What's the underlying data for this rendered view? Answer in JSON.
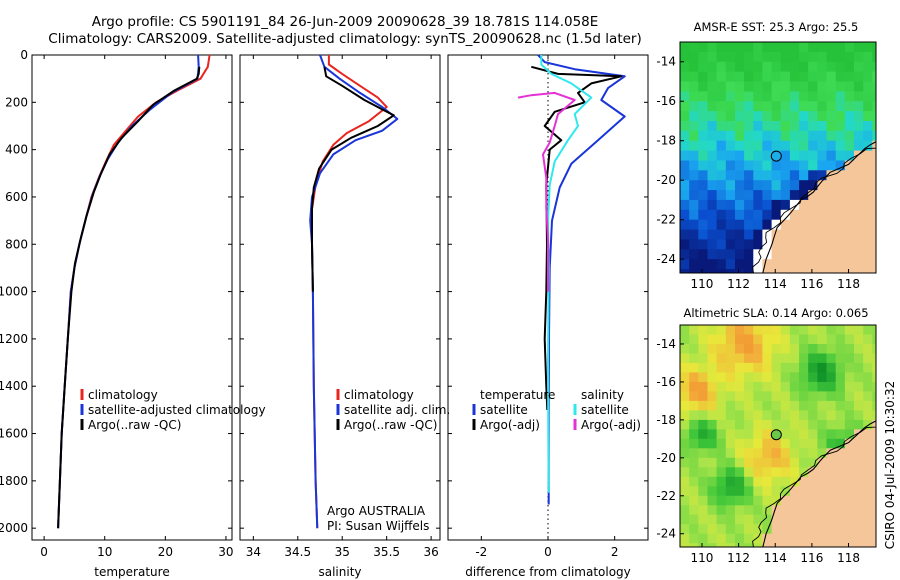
{
  "title_line1": "Argo profile: CS 5901191_84 26-Jun-2009 20090628_39 18.781S 114.058E",
  "title_line2": "Climatology: CARS2009. Satellite-adjusted climatology: synTS_20090628.nc (1.5d later)",
  "side_caption": "CSIRO 04-Jul-2009 10:30:32",
  "colors": {
    "climatology": "#e8261f",
    "satellite": "#1a35d8",
    "argo": "#000000",
    "sat_salinity": "#2ee8ee",
    "argo_salinity_adj": "#e531d6"
  },
  "chart_data": [
    {
      "id": "temperature",
      "type": "line",
      "xlabel": "temperature",
      "xlim": [
        -2,
        31
      ],
      "ylim": [
        2050,
        0
      ],
      "xticks": [
        "0",
        "10",
        "20",
        "30"
      ],
      "yticks": [
        "0",
        "200",
        "400",
        "600",
        "800",
        "1000",
        "1200",
        "1400",
        "1600",
        "1800",
        "2000"
      ],
      "legend": [
        "climatology",
        "satellite-adjusted climatology",
        "Argo(..raw -QC)"
      ],
      "series": [
        {
          "name": "climatology",
          "color": "#e8261f",
          "points": [
            [
              27.3,
              0
            ],
            [
              27.0,
              50
            ],
            [
              25.8,
              100
            ],
            [
              22,
              150
            ],
            [
              18.5,
              200
            ],
            [
              15.5,
              260
            ],
            [
              13.5,
              320
            ],
            [
              11.5,
              380
            ],
            [
              10.2,
              450
            ],
            [
              9.0,
              520
            ],
            [
              7.8,
              600
            ],
            [
              6.8,
              700
            ],
            [
              5.8,
              800
            ],
            [
              5.0,
              900
            ],
            [
              4.4,
              1000
            ],
            [
              3.9,
              1200
            ],
            [
              3.4,
              1400
            ],
            [
              2.9,
              1600
            ],
            [
              2.6,
              1800
            ],
            [
              2.3,
              2000
            ]
          ]
        },
        {
          "name": "satellite-adjusted climatology",
          "color": "#1a35d8",
          "points": [
            [
              25.4,
              0
            ],
            [
              25.5,
              50
            ],
            [
              25.3,
              100
            ],
            [
              21.0,
              160
            ],
            [
              17.5,
              230
            ],
            [
              14.5,
              300
            ],
            [
              12.2,
              370
            ],
            [
              10.5,
              440
            ],
            [
              9.2,
              510
            ],
            [
              8.0,
              590
            ],
            [
              6.9,
              690
            ],
            [
              5.9,
              790
            ],
            [
              5.0,
              900
            ],
            [
              4.4,
              1000
            ],
            [
              3.9,
              1200
            ],
            [
              3.4,
              1400
            ],
            [
              2.9,
              1600
            ],
            [
              2.6,
              1800
            ],
            [
              2.3,
              2000
            ]
          ]
        },
        {
          "name": "Argo(..raw -QC)",
          "color": "#000000",
          "points": [
            [
              25.6,
              50
            ],
            [
              25.5,
              80
            ],
            [
              25.2,
              100
            ],
            [
              21.5,
              150
            ],
            [
              18.0,
              210
            ],
            [
              15.5,
              280
            ],
            [
              12.8,
              350
            ],
            [
              10.8,
              420
            ],
            [
              9.4,
              500
            ],
            [
              8.2,
              580
            ],
            [
              7.0,
              680
            ],
            [
              6.0,
              780
            ],
            [
              5.1,
              880
            ],
            [
              4.5,
              1000
            ],
            [
              3.9,
              1200
            ],
            [
              3.4,
              1400
            ],
            [
              2.9,
              1600
            ],
            [
              2.6,
              1800
            ],
            [
              2.3,
              2000
            ]
          ]
        }
      ]
    },
    {
      "id": "salinity",
      "type": "line",
      "xlabel": "salinity",
      "xlim": [
        33.85,
        36.1
      ],
      "ylim": [
        2050,
        0
      ],
      "xticks": [
        "34",
        "34.5",
        "35",
        "35.5",
        "36"
      ],
      "legend": [
        "climatology",
        "satellite adj. clim.",
        "Argo(..raw -QC)"
      ],
      "annotations": [
        "Argo AUSTRALIA",
        "PI: Susan Wijffels"
      ],
      "series": [
        {
          "name": "climatology",
          "color": "#e8261f",
          "points": [
            [
              34.85,
              0
            ],
            [
              34.85,
              40
            ],
            [
              35.0,
              80
            ],
            [
              35.2,
              130
            ],
            [
              35.4,
              180
            ],
            [
              35.5,
              220
            ],
            [
              35.3,
              280
            ],
            [
              35.05,
              330
            ],
            [
              34.9,
              380
            ],
            [
              34.78,
              450
            ],
            [
              34.7,
              550
            ],
            [
              34.66,
              650
            ],
            [
              34.66,
              800
            ],
            [
              34.67,
              1000
            ],
            [
              34.68,
              1400
            ],
            [
              34.7,
              1800
            ],
            [
              34.72,
              2000
            ]
          ]
        },
        {
          "name": "satellite adj. clim.",
          "color": "#1a35d8",
          "points": [
            [
              34.75,
              0
            ],
            [
              34.8,
              50
            ],
            [
              34.97,
              100
            ],
            [
              35.2,
              160
            ],
            [
              35.45,
              220
            ],
            [
              35.62,
              270
            ],
            [
              35.45,
              320
            ],
            [
              35.15,
              360
            ],
            [
              34.9,
              420
            ],
            [
              34.75,
              500
            ],
            [
              34.66,
              600
            ],
            [
              34.64,
              700
            ],
            [
              34.66,
              800
            ],
            [
              34.67,
              1000
            ],
            [
              34.68,
              1400
            ],
            [
              34.7,
              1800
            ],
            [
              34.72,
              2000
            ]
          ]
        },
        {
          "name": "Argo(..raw -QC)",
          "color": "#000000",
          "points": [
            [
              34.8,
              50
            ],
            [
              34.82,
              90
            ],
            [
              35.0,
              130
            ],
            [
              35.25,
              190
            ],
            [
              35.45,
              230
            ],
            [
              35.58,
              255
            ],
            [
              35.4,
              300
            ],
            [
              35.1,
              350
            ],
            [
              34.88,
              400
            ],
            [
              34.74,
              480
            ],
            [
              34.68,
              560
            ],
            [
              34.66,
              650
            ],
            [
              34.66,
              800
            ],
            [
              34.67,
              1000
            ]
          ]
        }
      ]
    },
    {
      "id": "difference",
      "type": "line",
      "xlabel": "difference from climatology",
      "xlim": [
        -3.0,
        3.0
      ],
      "ylim": [
        2050,
        0
      ],
      "xticks": [
        "-2",
        "0",
        "2"
      ],
      "legend_temperature": [
        "temperature",
        "satellite",
        "Argo(-adj)"
      ],
      "legend_salinity": [
        "salinity",
        "satellite",
        "Argo(-adj)"
      ],
      "series": [
        {
          "name": "temperature satellite",
          "color": "#1a35d8",
          "points": [
            [
              -0.3,
              0
            ],
            [
              -0.1,
              30
            ],
            [
              0.8,
              60
            ],
            [
              2.3,
              90
            ],
            [
              1.8,
              140
            ],
            [
              1.6,
              190
            ],
            [
              2.3,
              260
            ],
            [
              1.5,
              360
            ],
            [
              0.7,
              460
            ],
            [
              0.35,
              560
            ],
            [
              0.12,
              700
            ],
            [
              0.05,
              900
            ],
            [
              0.03,
              1200
            ],
            [
              0.02,
              1500
            ],
            [
              0.02,
              1900
            ]
          ]
        },
        {
          "name": "temperature Argo(-adj)",
          "color": "#000000",
          "points": [
            [
              -0.5,
              50
            ],
            [
              0.3,
              80
            ],
            [
              2.2,
              90
            ],
            [
              1.3,
              120
            ],
            [
              0.9,
              160
            ],
            [
              1.1,
              200
            ],
            [
              0.2,
              240
            ],
            [
              -0.1,
              300
            ],
            [
              0.4,
              360
            ],
            [
              0.05,
              400
            ],
            [
              -0.05,
              550
            ],
            [
              -0.03,
              800
            ],
            [
              -0.05,
              1000
            ],
            [
              -0.1,
              1200
            ],
            [
              -0.05,
              1400
            ],
            [
              -0.02,
              1500
            ]
          ]
        },
        {
          "name": "salinity satellite",
          "color": "#2ee8ee",
          "points": [
            [
              -0.2,
              0
            ],
            [
              -0.2,
              40
            ],
            [
              0.1,
              80
            ],
            [
              0.7,
              120
            ],
            [
              1.3,
              180
            ],
            [
              0.8,
              250
            ],
            [
              0.9,
              300
            ],
            [
              0.6,
              360
            ],
            [
              0.2,
              450
            ],
            [
              0.05,
              550
            ],
            [
              0.0,
              700
            ],
            [
              0.02,
              900
            ],
            [
              0.0,
              1300
            ],
            [
              0.01,
              1600
            ],
            [
              0.02,
              1850
            ]
          ]
        },
        {
          "name": "salinity Argo(-adj)",
          "color": "#e531d6",
          "points": [
            [
              -0.9,
              180
            ],
            [
              -0.5,
              170
            ],
            [
              0.2,
              160
            ],
            [
              0.8,
              190
            ],
            [
              0.3,
              250
            ],
            [
              0.2,
              300
            ],
            [
              0.05,
              370
            ],
            [
              -0.15,
              420
            ],
            [
              -0.05,
              520
            ],
            [
              -0.05,
              650
            ],
            [
              0.0,
              780
            ],
            [
              0.0,
              1000
            ]
          ]
        }
      ]
    }
  ],
  "sst_map": {
    "title": "AMSR-E SST: 25.3 Argo: 25.5",
    "xticks": [
      "110",
      "112",
      "114",
      "116",
      "118"
    ],
    "yticks": [
      "-14",
      "-16",
      "-18",
      "-20",
      "-22",
      "-24"
    ],
    "lon": [
      108.8,
      119.5
    ],
    "lat": [
      -13,
      -24.7
    ],
    "argo_position": [
      114.058,
      -18.781
    ]
  },
  "sla_map": {
    "title": "Altimetric SLA: 0.14 Argo: 0.065",
    "xticks": [
      "110",
      "112",
      "114",
      "116",
      "118"
    ],
    "yticks": [
      "-14",
      "-16",
      "-18",
      "-20",
      "-22",
      "-24"
    ],
    "lon": [
      108.8,
      119.5
    ],
    "lat": [
      -13,
      -24.7
    ],
    "argo_position": [
      114.058,
      -18.781
    ]
  }
}
